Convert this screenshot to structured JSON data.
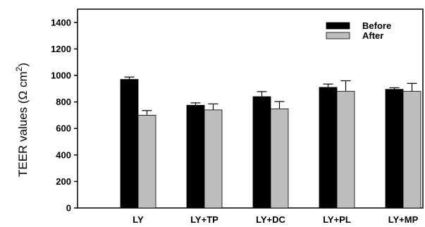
{
  "chart_data": {
    "type": "bar",
    "categories": [
      "LY",
      "LY+TP",
      "LY+DC",
      "LY+PL",
      "LY+MP"
    ],
    "series": [
      {
        "name": "Before",
        "color": "#000000",
        "values": [
          970,
          775,
          840,
          910,
          895
        ],
        "errors": [
          18,
          18,
          38,
          25,
          12
        ]
      },
      {
        "name": "After",
        "color": "#bdbdbd",
        "values": [
          700,
          740,
          748,
          880,
          880
        ],
        "errors": [
          35,
          45,
          55,
          80,
          60
        ]
      }
    ],
    "ylabel": {
      "prefix": "TEER values (",
      "omega": "Ω",
      "unit": " cm",
      "exponent": "2",
      "suffix": ")"
    },
    "yticks": [
      0,
      200,
      400,
      600,
      800,
      1000,
      1200,
      1400
    ],
    "yticks_text": [
      "0",
      "200",
      "400",
      "600",
      "800",
      "1000",
      "1200",
      "1400"
    ],
    "ylim": [
      0,
      1500
    ],
    "grid": false,
    "legend_position": "top-right"
  }
}
